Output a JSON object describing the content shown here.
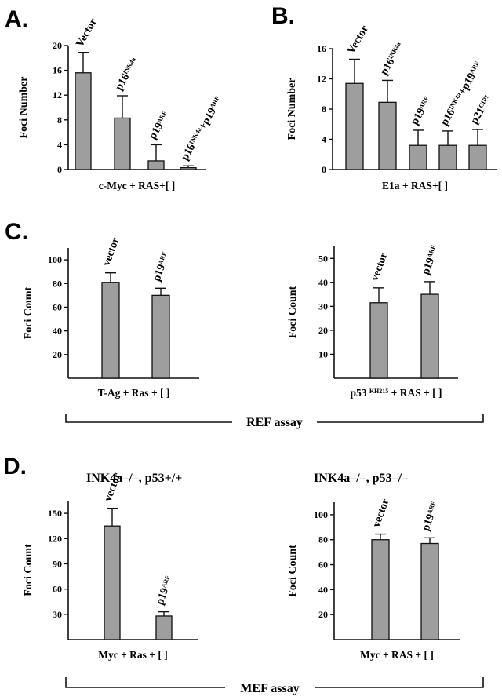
{
  "figure": {
    "panels": [
      {
        "letter": "A."
      },
      {
        "letter": "B."
      },
      {
        "letter": "C."
      },
      {
        "letter": "D."
      }
    ],
    "assays": {
      "ref": "REF assay",
      "mef": "MEF assay"
    },
    "subtitles": {
      "d_left": "INK4a–/–, p53+/+",
      "d_right": "INK4a–/–, p53–/–"
    }
  },
  "chart_data": [
    {
      "id": "A",
      "type": "bar",
      "ylabel": "Foci Number",
      "xlabel": "c-Myc + RAS+[ ]",
      "ylim": [
        0,
        20
      ],
      "yticks": [
        0,
        4,
        8,
        12,
        16,
        20
      ],
      "categories": [
        [
          {
            "t": "Vector"
          }
        ],
        [
          {
            "t": "p16"
          },
          {
            "t": "INK4a",
            "sup": true
          }
        ],
        [
          {
            "t": "p19"
          },
          {
            "t": "ARF",
            "sup": true
          }
        ],
        [
          {
            "t": "p16"
          },
          {
            "t": "INK4a",
            "sup": true
          },
          {
            "t": "+p19"
          },
          {
            "t": "ARF",
            "sup": true
          }
        ]
      ],
      "values": [
        15.6,
        8.3,
        1.4,
        0.3
      ],
      "errors": [
        3.3,
        3.6,
        2.6,
        0.3
      ]
    },
    {
      "id": "B",
      "type": "bar",
      "ylabel": "Foci Number",
      "xlabel": "E1a + RAS+[ ]",
      "ylim": [
        0,
        16
      ],
      "yticks": [
        0,
        4,
        8,
        12,
        16
      ],
      "categories": [
        [
          {
            "t": "Vector"
          }
        ],
        [
          {
            "t": "p16"
          },
          {
            "t": "INK4a",
            "sup": true
          }
        ],
        [
          {
            "t": "p19"
          },
          {
            "t": "ARF",
            "sup": true
          }
        ],
        [
          {
            "t": "p16"
          },
          {
            "t": "INK4a",
            "sup": true
          },
          {
            "t": "+p19"
          },
          {
            "t": "ARF",
            "sup": true
          }
        ],
        [
          {
            "t": "p21"
          },
          {
            "t": "CIP1",
            "sup": true
          }
        ]
      ],
      "values": [
        11.4,
        8.9,
        3.2,
        3.2,
        3.2
      ],
      "errors": [
        3.2,
        2.9,
        2.0,
        1.9,
        2.1
      ]
    },
    {
      "id": "C-left",
      "type": "bar",
      "ylabel": "Foci Count",
      "xlabel": "T-Ag + Ras + [ ]",
      "ylim": [
        0,
        110
      ],
      "yticks": [
        20,
        40,
        60,
        80,
        100
      ],
      "categories": [
        [
          {
            "t": "vector"
          }
        ],
        [
          {
            "t": "p19"
          },
          {
            "t": "ARF",
            "sup": true
          }
        ]
      ],
      "values": [
        81,
        70
      ],
      "errors": [
        8,
        6
      ]
    },
    {
      "id": "C-right",
      "type": "bar",
      "ylabel": "Foci Count",
      "xlabel_parts": [
        {
          "t": "p53 "
        },
        {
          "t": "KH215",
          "sup": true
        },
        {
          "t": " + RAS + [  ]"
        }
      ],
      "ylim": [
        0,
        55
      ],
      "yticks": [
        10,
        20,
        30,
        40,
        50
      ],
      "categories": [
        [
          {
            "t": "vector"
          }
        ],
        [
          {
            "t": "p19"
          },
          {
            "t": "ARF",
            "sup": true
          }
        ]
      ],
      "values": [
        31.5,
        35
      ],
      "errors": [
        6.2,
        5.3
      ]
    },
    {
      "id": "D-left",
      "type": "bar",
      "ylabel": "Foci Count",
      "xlabel": "Myc + Ras + [ ]",
      "ylim": [
        0,
        165
      ],
      "yticks": [
        30,
        60,
        90,
        120,
        150
      ],
      "categories": [
        [
          {
            "t": "vector"
          }
        ],
        [
          {
            "t": "p19"
          },
          {
            "t": "ARF",
            "sup": true
          }
        ]
      ],
      "values": [
        135,
        28
      ],
      "errors": [
        21,
        5
      ]
    },
    {
      "id": "D-right",
      "type": "bar",
      "ylabel": "Foci Count",
      "xlabel": "Myc + RAS + [  ]",
      "ylim": [
        0,
        110
      ],
      "yticks": [
        20,
        40,
        60,
        80,
        100
      ],
      "categories": [
        [
          {
            "t": "vector"
          }
        ],
        [
          {
            "t": "p19"
          },
          {
            "t": "ARF",
            "sup": true
          }
        ]
      ],
      "values": [
        80,
        77
      ],
      "errors": [
        4.5,
        4.5
      ]
    }
  ],
  "colors": {
    "bar_fill": "#9e9e9e",
    "stroke": "#111111"
  }
}
